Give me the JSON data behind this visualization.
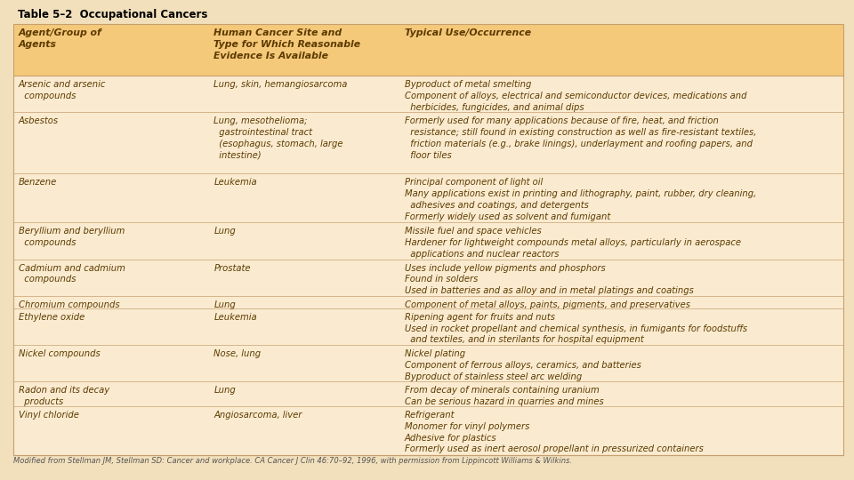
{
  "title": "Table 5–2  Occupational Cancers",
  "bg_outer": "#F2E0BC",
  "bg_table": "#FAEBD0",
  "header_bg": "#F5C97A",
  "border_color": "#C8A070",
  "title_color": "#000000",
  "text_color": "#5C3A00",
  "footer_color": "#555555",
  "footer_text": "Modified from Stellman JM, Stellman SD: Cancer and workplace. CA Cancer J Clin 46:70–92, 1996, with permission from Lippincott Williams & Wilkins.",
  "col_headers": [
    "Agent/Group of\nAgents",
    "Human Cancer Site and\nType for Which Reasonable\nEvidence Is Available",
    "Typical Use/Occurrence"
  ],
  "col_starts": [
    0.0,
    0.235,
    0.465
  ],
  "rows": [
    {
      "agent": "Arsenic and arsenic\n  compounds",
      "cancer": "Lung, skin, hemangiosarcoma",
      "use": "Byproduct of metal smelting\nComponent of alloys, electrical and semiconductor devices, medications and\n  herbicides, fungicides, and animal dips",
      "n_lines": 3
    },
    {
      "agent": "Asbestos",
      "cancer": "Lung, mesothelioma;\n  gastrointestinal tract\n  (esophagus, stomach, large\n  intestine)",
      "use": "Formerly used for many applications because of fire, heat, and friction\n  resistance; still found in existing construction as well as fire-resistant textiles,\n  friction materials (e.g., brake linings), underlayment and roofing papers, and\n  floor tiles",
      "n_lines": 5
    },
    {
      "agent": "Benzene",
      "cancer": "Leukemia",
      "use": "Principal component of light oil\nMany applications exist in printing and lithography, paint, rubber, dry cleaning,\n  adhesives and coatings, and detergents\nFormerly widely used as solvent and fumigant",
      "n_lines": 4
    },
    {
      "agent": "Beryllium and beryllium\n  compounds",
      "cancer": "Lung",
      "use": "Missile fuel and space vehicles\nHardener for lightweight compounds metal alloys, particularly in aerospace\n  applications and nuclear reactors",
      "n_lines": 3
    },
    {
      "agent": "Cadmium and cadmium\n  compounds",
      "cancer": "Prostate",
      "use": "Uses include yellow pigments and phosphors\nFound in solders\nUsed in batteries and as alloy and in metal platings and coatings",
      "n_lines": 3
    },
    {
      "agent": "Chromium compounds",
      "cancer": "Lung",
      "use": "Component of metal alloys, paints, pigments, and preservatives",
      "n_lines": 1
    },
    {
      "agent": "Ethylene oxide",
      "cancer": "Leukemia",
      "use": "Ripening agent for fruits and nuts\nUsed in rocket propellant and chemical synthesis, in fumigants for foodstuffs\n  and textiles, and in sterilants for hospital equipment",
      "n_lines": 3
    },
    {
      "agent": "Nickel compounds",
      "cancer": "Nose, lung",
      "use": "Nickel plating\nComponent of ferrous alloys, ceramics, and batteries\nByproduct of stainless steel arc welding",
      "n_lines": 3
    },
    {
      "agent": "Radon and its decay\n  products",
      "cancer": "Lung",
      "use": "From decay of minerals containing uranium\nCan be serious hazard in quarries and mines",
      "n_lines": 2
    },
    {
      "agent": "Vinyl chloride",
      "cancer": "Angiosarcoma, liver",
      "use": "Refrigerant\nMonomer for vinyl polymers\nAdhesive for plastics\nFormerly used as inert aerosol propellant in pressurized containers",
      "n_lines": 4
    }
  ]
}
